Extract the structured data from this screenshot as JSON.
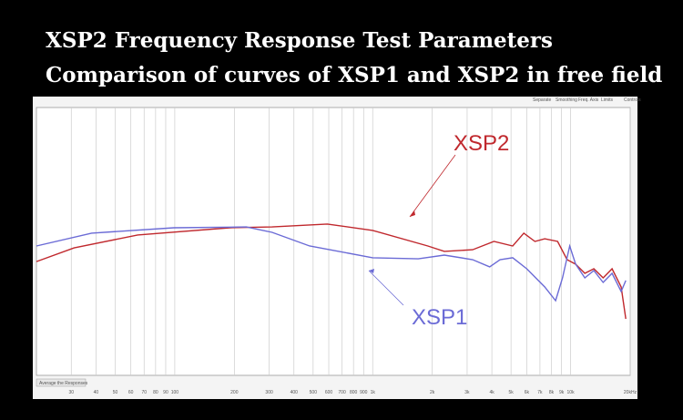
{
  "chart_data": {
    "type": "line",
    "title": "XSP2 Frequency Response Test Parameters",
    "subtitle": "Comparison of curves of XSP1 and XSP2 in free field",
    "toolbar": [
      "Separate",
      "Smoothing",
      "Freq. Axis",
      "Limits",
      "Controls"
    ],
    "button": "Average the Responses",
    "log_x": true,
    "grid": true,
    "xlim": [
      20,
      20000
    ],
    "ylim": [
      0,
      100
    ],
    "xticks": [
      30,
      40,
      50,
      60,
      70,
      80,
      90,
      100,
      200,
      300,
      400,
      500,
      600,
      700,
      800,
      900,
      {
        "value": 1000,
        "label": "1k"
      },
      {
        "value": 2000,
        "label": "2k"
      },
      {
        "value": 3000,
        "label": "3k"
      },
      {
        "value": 4000,
        "label": "4k"
      },
      {
        "value": 5000,
        "label": "5k"
      },
      {
        "value": 6000,
        "label": "6k"
      },
      {
        "value": 7000,
        "label": "7k"
      },
      {
        "value": 8000,
        "label": "8k"
      },
      {
        "value": 9000,
        "label": "9k"
      },
      {
        "value": 10000,
        "label": "10k"
      },
      {
        "value": 20000,
        "label": "20kHz"
      }
    ],
    "annotations": [
      "XSP2",
      "XSP1"
    ],
    "series": [
      {
        "name": "XSP2",
        "color": "#c0282d",
        "x": [
          20,
          31,
          65,
          190,
          310,
          590,
          1000,
          1900,
          2300,
          3200,
          4100,
          5100,
          5800,
          6600,
          7400,
          8600,
          9600,
          10600,
          11800,
          13100,
          14600,
          16200,
          18000,
          19000
        ],
        "values": [
          42.5,
          47.6,
          52.4,
          55.1,
          55.4,
          56.5,
          54.1,
          48.3,
          46.3,
          46.9,
          50,
          48.3,
          53.1,
          50,
          51,
          50,
          43.2,
          41.5,
          38.1,
          39.8,
          36.4,
          39.8,
          33,
          21.1
        ]
      },
      {
        "name": "XSP1",
        "color": "#6b6bd6",
        "x": [
          20,
          38,
          99,
          230,
          310,
          480,
          1000,
          1700,
          2300,
          3200,
          3900,
          4400,
          5100,
          6000,
          7400,
          8400,
          9100,
          9900,
          10600,
          11800,
          13100,
          14600,
          16200,
          18000,
          19000
        ],
        "values": [
          48.3,
          53.1,
          55.1,
          55.4,
          53.4,
          48.3,
          43.9,
          43.5,
          44.9,
          43.2,
          40.5,
          43.2,
          43.9,
          39.8,
          33,
          27.9,
          36.4,
          48.3,
          41.5,
          36.4,
          39.1,
          34.7,
          38.1,
          31.3,
          35.4
        ]
      }
    ]
  }
}
